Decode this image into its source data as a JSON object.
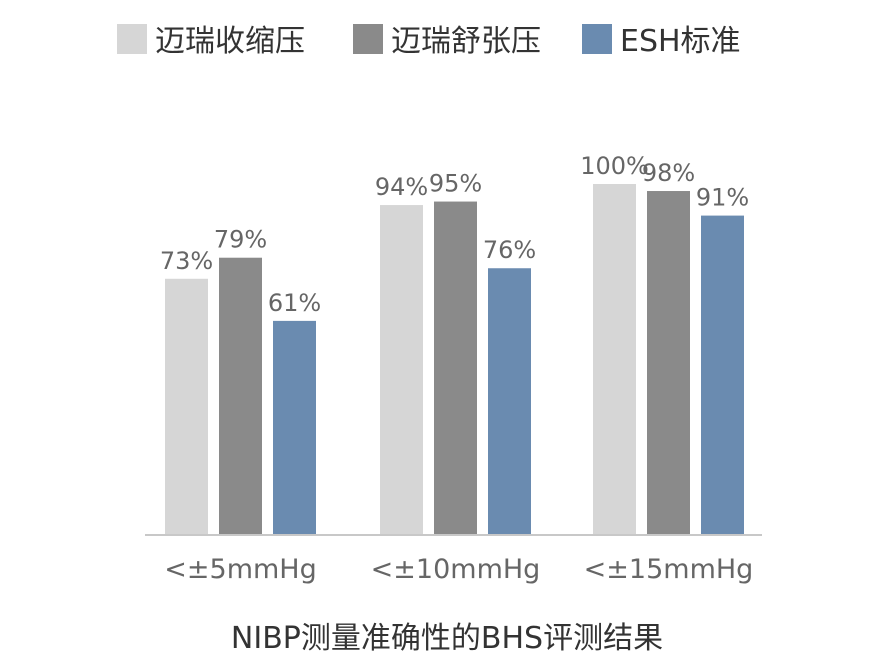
{
  "chart_data": {
    "type": "bar",
    "title": "",
    "xlabel": "",
    "ylabel": "",
    "caption": "NIBP测量准确性的BHS评测结果",
    "categories": [
      "<±5mmHg",
      "<±10mmHg",
      "<±15mmHg"
    ],
    "series": [
      {
        "name": "迈瑞收缩压",
        "color": "#d6d6d6",
        "values": [
          73,
          94,
          100
        ],
        "labels": [
          "73%",
          "94%",
          "100%"
        ]
      },
      {
        "name": "迈瑞舒张压",
        "color": "#8a8a8a",
        "values": [
          79,
          95,
          98
        ],
        "labels": [
          "79%",
          "95%",
          "98%"
        ]
      },
      {
        "name": "ESH标准",
        "color": "#6a8bb0",
        "values": [
          61,
          76,
          91
        ],
        "labels": [
          "61%",
          "76%",
          "91%"
        ]
      }
    ],
    "ylim": [
      0,
      100
    ],
    "grid": false,
    "legend": "top"
  }
}
